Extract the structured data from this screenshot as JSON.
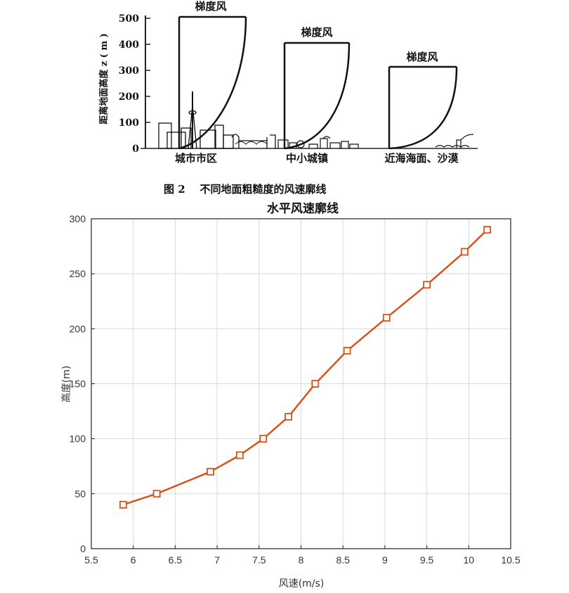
{
  "figure_top": {
    "caption": "图 2    不同地面粗糙度的风速廓线",
    "y_axis_label": "距离地面高度 z ( m )",
    "y_ticks": [
      "500",
      "400",
      "300",
      "200",
      "100",
      "0"
    ],
    "gradient_label": "梯度风",
    "terrains": [
      "城市市区",
      "中小城镇",
      "近海海面、沙漠"
    ]
  },
  "chart_data": {
    "type": "line",
    "title": "水平风速廓线",
    "xlabel": "风速(m/s)",
    "ylabel": "高度(m)",
    "xlim": [
      5.5,
      10.5
    ],
    "ylim": [
      0,
      300
    ],
    "x_ticks": [
      "5.5",
      "6",
      "6.5",
      "7",
      "7.5",
      "8",
      "8.5",
      "9",
      "9.5",
      "10",
      "10.5"
    ],
    "y_ticks": [
      "0",
      "50",
      "100",
      "150",
      "200",
      "250",
      "300"
    ],
    "grid": true,
    "series": [
      {
        "color": "#d95319",
        "marker": "square",
        "x": [
          5.88,
          6.28,
          6.92,
          7.27,
          7.55,
          7.85,
          8.17,
          8.55,
          9.02,
          9.5,
          9.95,
          10.22
        ],
        "y": [
          40,
          50,
          70,
          85,
          100,
          120,
          150,
          180,
          210,
          240,
          270,
          290
        ]
      }
    ]
  }
}
